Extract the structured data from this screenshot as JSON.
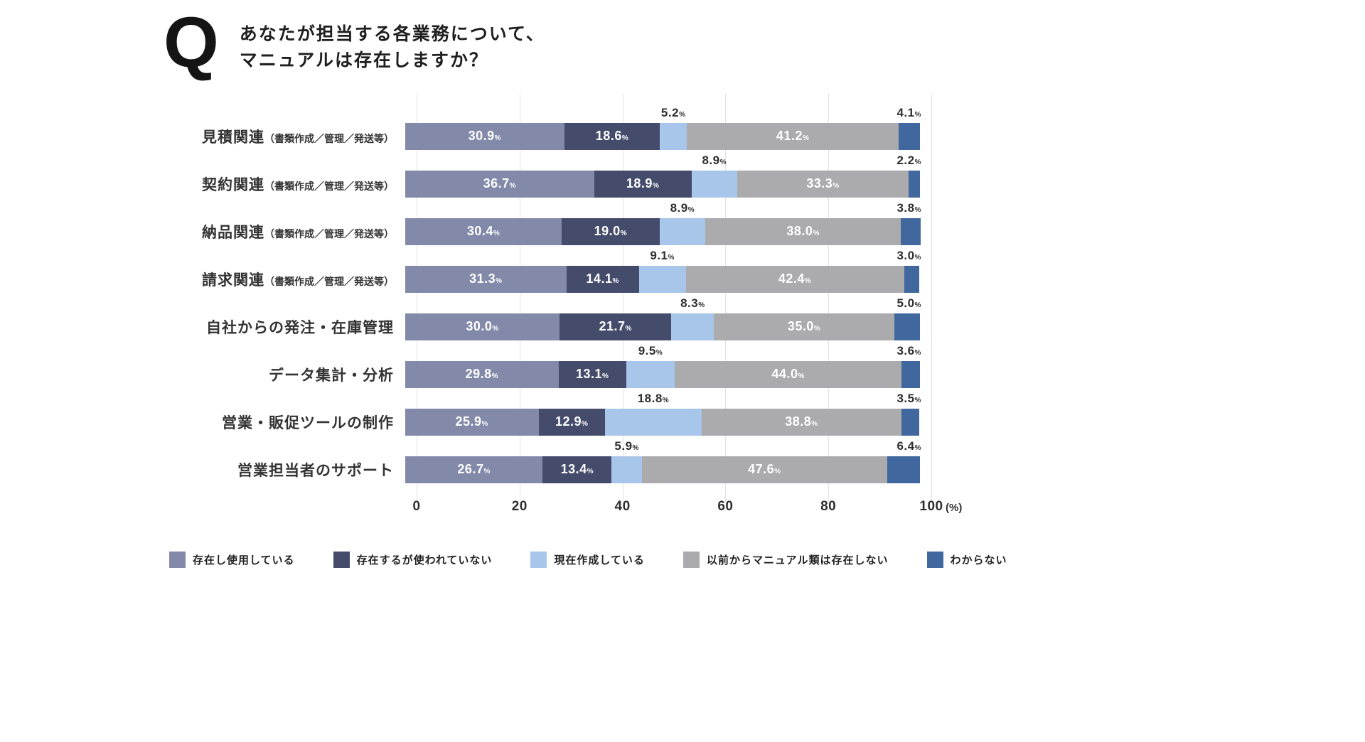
{
  "question": {
    "mark": "Q",
    "lines": [
      "あなたが担当する各業務について、",
      "マニュアルは存在しますか？"
    ]
  },
  "chart_data": {
    "type": "bar",
    "variant": "horizontal-stacked",
    "unit": "%",
    "x_axis": {
      "ticks": [
        "0",
        "20",
        "40",
        "60",
        "80",
        "100"
      ],
      "unit_label": "(%)",
      "min": 0,
      "max": 100,
      "grid": true
    },
    "categories": [
      {
        "label": "見積関連",
        "sub": "（書類作成／管理／発送等）"
      },
      {
        "label": "契約関連",
        "sub": "（書類作成／管理／発送等）"
      },
      {
        "label": "納品関連",
        "sub": "（書類作成／管理／発送等）"
      },
      {
        "label": "請求関連",
        "sub": "（書類作成／管理／発送等）"
      },
      {
        "label": "自社からの発注・在庫管理",
        "sub": ""
      },
      {
        "label": "データ集計・分析",
        "sub": ""
      },
      {
        "label": "営業・販促ツールの制作",
        "sub": ""
      },
      {
        "label": "営業担当者のサポート",
        "sub": ""
      }
    ],
    "series": [
      {
        "key": "exists-used",
        "name": "存在し使用している",
        "color": "#8289A9",
        "label_position": "inside",
        "values": [
          30.9,
          36.7,
          30.4,
          31.3,
          30.0,
          29.8,
          25.9,
          26.7
        ]
      },
      {
        "key": "exists-unused",
        "name": "存在するが使われていない",
        "color": "#454C6B",
        "label_position": "inside",
        "values": [
          18.6,
          18.9,
          19.0,
          14.1,
          21.7,
          13.1,
          12.9,
          13.4
        ]
      },
      {
        "key": "creating-now",
        "name": "現在作成している",
        "color": "#A7C6EA",
        "label_position": "above",
        "values": [
          5.2,
          8.9,
          8.9,
          9.1,
          8.3,
          9.5,
          18.8,
          5.9
        ]
      },
      {
        "key": "never-existed",
        "name": "以前からマニュアル類は存在しない",
        "color": "#ABAAAC",
        "label_position": "inside",
        "values": [
          41.2,
          33.3,
          38.0,
          42.4,
          35.0,
          44.0,
          38.8,
          47.6
        ]
      },
      {
        "key": "unknown",
        "name": "わからない",
        "color": "#40689F",
        "label_position": "above-right",
        "values": [
          4.1,
          2.2,
          3.8,
          3.0,
          5.0,
          3.6,
          3.5,
          6.4
        ]
      }
    ],
    "legend_position": "bottom"
  }
}
